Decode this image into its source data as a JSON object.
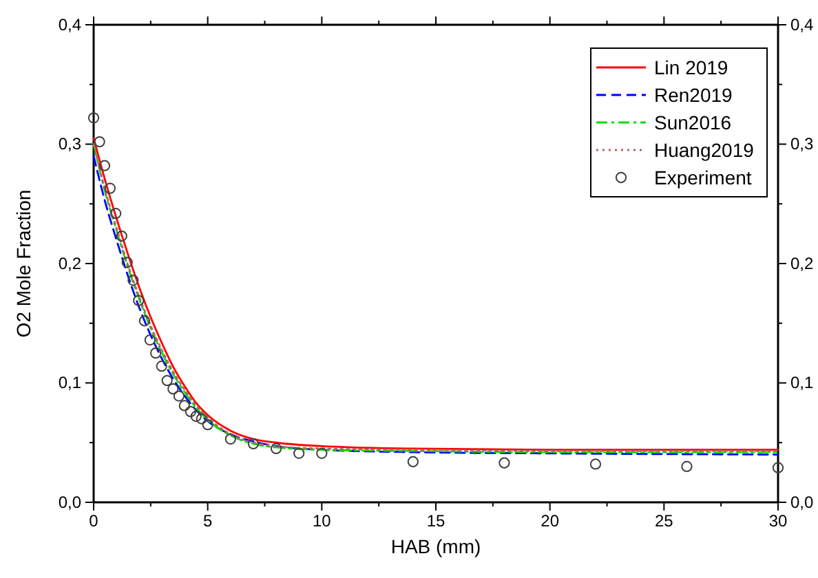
{
  "chart_data": {
    "type": "line",
    "xlabel": "HAB (mm)",
    "ylabel": "O2 Mole Fraction",
    "xlim": [
      0,
      30
    ],
    "xticks": [
      0,
      {
        "value": 2.5,
        "label": null
      },
      5,
      {
        "value": 7.5,
        "label": null
      },
      10,
      {
        "value": 12.5,
        "label": null
      },
      15,
      {
        "value": 17.5,
        "label": null
      },
      20,
      {
        "value": 22.5,
        "label": null
      },
      25,
      {
        "value": 27.5,
        "label": null
      },
      30
    ],
    "ylim": [
      0,
      0.4
    ],
    "yticks": [
      {
        "value": 0,
        "label": "0,0"
      },
      {
        "value": 0.05,
        "label": null
      },
      {
        "value": 0.1,
        "label": "0,1"
      },
      {
        "value": 0.15,
        "label": null
      },
      {
        "value": 0.2,
        "label": "0,2"
      },
      {
        "value": 0.25,
        "label": null
      },
      {
        "value": 0.3,
        "label": "0,3"
      },
      {
        "value": 0.35,
        "label": null
      },
      {
        "value": 0.4,
        "label": "0,4"
      }
    ],
    "y2lim": [
      0,
      0.4
    ],
    "y2ticks": [
      {
        "value": 0,
        "label": "0,0"
      },
      {
        "value": 0.05,
        "label": null
      },
      {
        "value": 0.1,
        "label": "0,1"
      },
      {
        "value": 0.15,
        "label": null
      },
      {
        "value": 0.2,
        "label": "0,2"
      },
      {
        "value": 0.25,
        "label": null
      },
      {
        "value": 0.3,
        "label": "0,3"
      },
      {
        "value": 0.35,
        "label": null
      },
      {
        "value": 0.4,
        "label": "0,4"
      }
    ],
    "grid": false,
    "legend": "top right",
    "series": [
      {
        "name": "Lin 2019",
        "color": "#ff0000",
        "line_style": "solid",
        "x": [
          0,
          0.5,
          1,
          1.5,
          2,
          2.5,
          3,
          3.5,
          4,
          4.5,
          5,
          6,
          7,
          8,
          10,
          14,
          20,
          30
        ],
        "values": [
          0.305,
          0.27,
          0.238,
          0.208,
          0.18,
          0.155,
          0.133,
          0.113,
          0.097,
          0.083,
          0.073,
          0.06,
          0.053,
          0.05,
          0.047,
          0.045,
          0.044,
          0.044
        ]
      },
      {
        "name": "Ren2019",
        "color": "#0000ff",
        "line_style": "dashed",
        "x": [
          0,
          0.5,
          1,
          1.5,
          2,
          2.5,
          3,
          3.5,
          4,
          4.5,
          5,
          6,
          7,
          8,
          10,
          14,
          20,
          30
        ],
        "values": [
          0.29,
          0.252,
          0.22,
          0.19,
          0.163,
          0.14,
          0.12,
          0.103,
          0.089,
          0.077,
          0.068,
          0.057,
          0.051,
          0.047,
          0.044,
          0.042,
          0.041,
          0.04
        ]
      },
      {
        "name": "Sun2016",
        "color": "#00dd00",
        "line_style": "dashdot",
        "x": [
          0,
          0.5,
          1,
          1.5,
          2,
          2.5,
          3,
          3.5,
          4,
          4.5,
          5,
          6,
          7,
          8,
          10,
          14,
          20,
          30
        ],
        "values": [
          0.3,
          0.26,
          0.228,
          0.197,
          0.17,
          0.146,
          0.125,
          0.107,
          0.092,
          0.079,
          0.069,
          0.056,
          0.049,
          0.046,
          0.044,
          0.043,
          0.042,
          0.042
        ]
      },
      {
        "name": "Huang2019",
        "color": "#c06060",
        "line_style": "dotted",
        "x": [
          0,
          0.5,
          1,
          1.5,
          2,
          2.5,
          3,
          3.5,
          4,
          4.5,
          5,
          6,
          7,
          8,
          10,
          14,
          20,
          30
        ],
        "values": [
          0.3,
          0.262,
          0.23,
          0.199,
          0.172,
          0.148,
          0.127,
          0.109,
          0.094,
          0.081,
          0.071,
          0.057,
          0.05,
          0.047,
          0.045,
          0.044,
          0.043,
          0.043
        ]
      },
      {
        "name": "Experiment",
        "type": "scatter",
        "marker": "circle",
        "color": "#404040",
        "x": [
          0,
          0.26,
          0.48,
          0.72,
          0.97,
          1.23,
          1.47,
          1.73,
          1.97,
          2.23,
          2.47,
          2.72,
          2.98,
          3.22,
          3.48,
          3.74,
          3.98,
          4.25,
          4.49,
          4.73,
          5,
          6,
          7,
          8,
          9,
          10,
          14,
          18,
          22,
          26,
          30
        ],
        "values": [
          0.322,
          0.302,
          0.282,
          0.263,
          0.242,
          0.223,
          0.201,
          0.186,
          0.169,
          0.152,
          0.136,
          0.125,
          0.114,
          0.102,
          0.095,
          0.089,
          0.081,
          0.076,
          0.072,
          0.07,
          0.065,
          0.053,
          0.049,
          0.045,
          0.041,
          0.041,
          0.034,
          0.033,
          0.032,
          0.03,
          0.029
        ]
      }
    ]
  }
}
